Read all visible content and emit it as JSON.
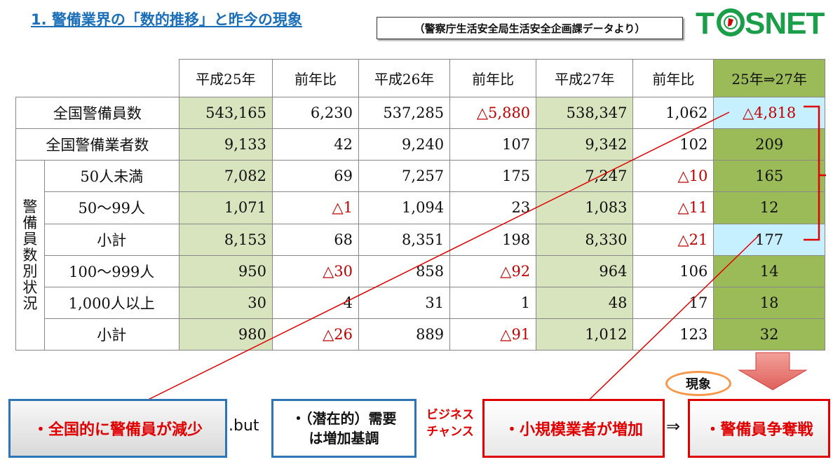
{
  "header": {
    "title": "1. 警備業界の「数的推移」と昨今の現象",
    "source": "（警察庁生活安全局生活安全企画課データより）",
    "logo_text": "TOSNET"
  },
  "table": {
    "headers": [
      "平成25年",
      "前年比",
      "平成26年",
      "前年比",
      "平成27年",
      "前年比",
      "25年⇒27年"
    ],
    "group_label": "警備員数別状況",
    "rows": [
      {
        "label": "全国警備員数",
        "values": [
          "543,165",
          "6,230",
          "537,285",
          "△5,880",
          "538,347",
          "1,062",
          "△4,818"
        ]
      },
      {
        "label": "全国警備業者数",
        "values": [
          "9,133",
          "42",
          "9,240",
          "107",
          "9,342",
          "102",
          "209"
        ]
      },
      {
        "label": "50人未満",
        "values": [
          "7,082",
          "69",
          "7,257",
          "175",
          "7,247",
          "△10",
          "165"
        ]
      },
      {
        "label": "50〜99人",
        "values": [
          "1,071",
          "△1",
          "1,094",
          "23",
          "1,083",
          "△11",
          "12"
        ]
      },
      {
        "label": "小計",
        "values": [
          "8,153",
          "68",
          "8,351",
          "198",
          "8,330",
          "△21",
          "177"
        ]
      },
      {
        "label": "100〜999人",
        "values": [
          "950",
          "△30",
          "858",
          "△92",
          "964",
          "106",
          "14"
        ]
      },
      {
        "label": "1,000人以上",
        "values": [
          "30",
          "4",
          "31",
          "1",
          "48",
          "17",
          "18"
        ]
      },
      {
        "label": "小計",
        "values": [
          "980",
          "△26",
          "889",
          "△91",
          "1,012",
          "123",
          "32"
        ]
      }
    ]
  },
  "callouts": {
    "decrease": "・全国的に警備員が減少",
    "but": ".but",
    "demand_line1": "・（潜在的）需要",
    "demand_line2": "は増加基調",
    "business_line1": "ビジネス",
    "business_line2": "チャンス",
    "small_firms": "・小規模業者が増加",
    "arrow": "⇒",
    "competition": "・警備員争奪戦",
    "phenomenon": "現象"
  },
  "colors": {
    "title": "#1a6fb8",
    "accent_red": "#e00000",
    "border_blue": "#2e75b6",
    "green_light": "#d7e4bd",
    "green_dark": "#9bbb59",
    "logo_green": "#1a9e4a"
  }
}
